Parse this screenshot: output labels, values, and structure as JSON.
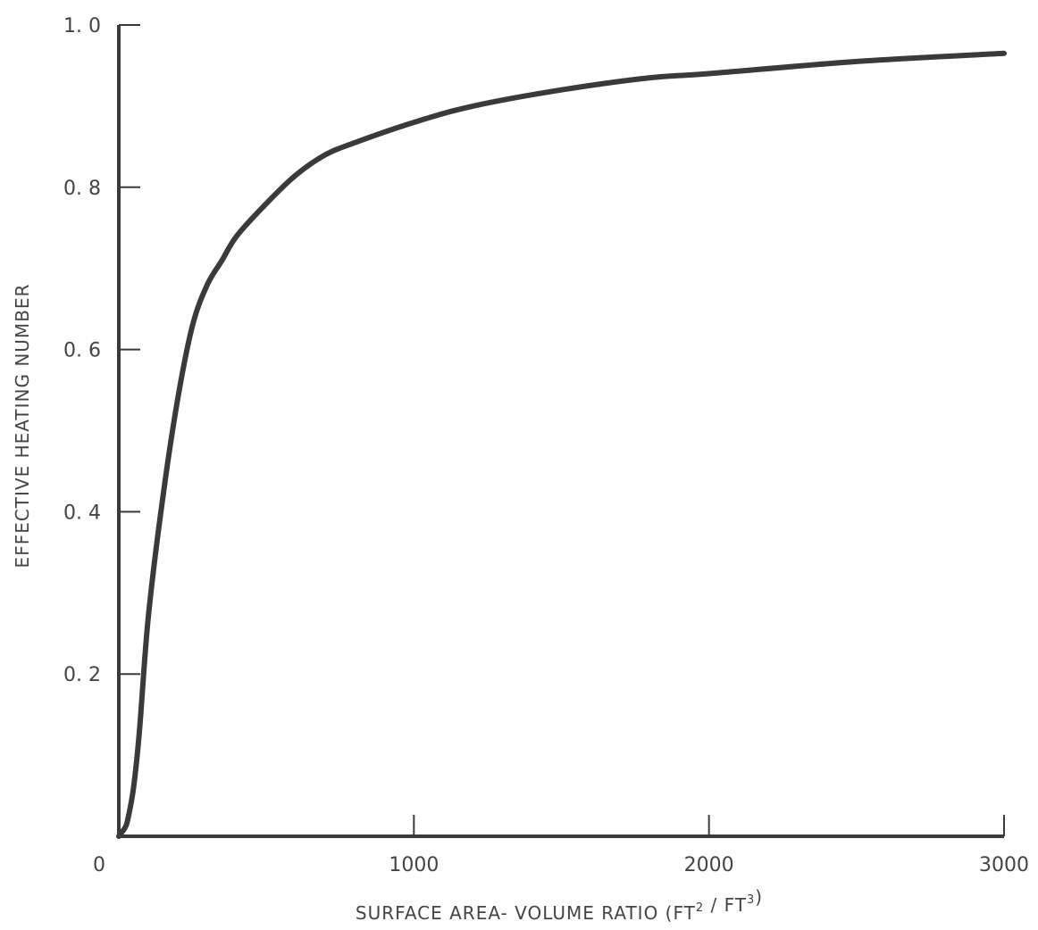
{
  "chart_data": {
    "type": "line",
    "title": "",
    "xlabel": "SURFACE AREA- VOLUME RATIO (FT² / FT³)",
    "ylabel": "EFFECTIVE HEATING NUMBER",
    "xlim": [
      0,
      3000
    ],
    "ylim": [
      0,
      1.0
    ],
    "x_ticks": [
      0,
      1000,
      2000,
      3000
    ],
    "x_tick_labels": [
      "0",
      "1000",
      "2000",
      "3000"
    ],
    "y_ticks": [
      0.2,
      0.4,
      0.6,
      0.8,
      1.0
    ],
    "y_tick_labels": [
      "0. 2",
      "0. 4",
      "0. 6",
      "0. 8",
      "1. 0"
    ],
    "grid": false,
    "legend": "none",
    "line_color": "#3a3a3a",
    "series": [
      {
        "x": [
          0,
          10,
          20,
          30,
          50,
          70,
          100,
          150,
          200,
          250,
          300,
          350,
          400,
          500,
          600,
          700,
          800,
          1000,
          1200,
          1500,
          1800,
          2000,
          2500,
          3000
        ],
        "y": [
          0,
          0.005,
          0.01,
          0.02,
          0.06,
          0.13,
          0.27,
          0.42,
          0.54,
          0.63,
          0.68,
          0.71,
          0.74,
          0.78,
          0.815,
          0.84,
          0.855,
          0.88,
          0.9,
          0.92,
          0.935,
          0.94,
          0.955,
          0.965
        ]
      }
    ]
  }
}
